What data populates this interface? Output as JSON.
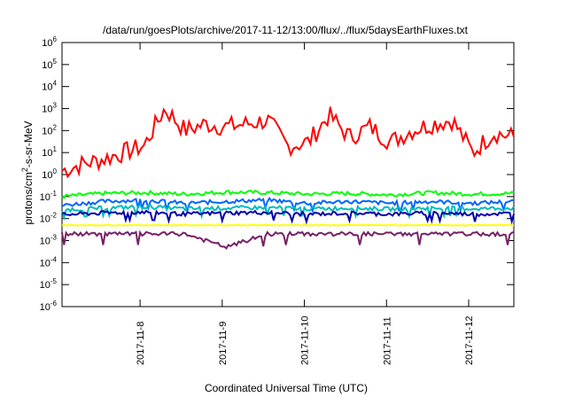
{
  "chart_data": {
    "type": "line",
    "title": "/data/run/goesPlots/archive/2017-11-12/13:00/flux/../flux/5daysEarthFluxes.txt",
    "xlabel": "Coordinated Universal Time (UTC)",
    "ylabel": {
      "base": "protons/cm",
      "sup": "2",
      "rest": "-s-sr-MeV"
    },
    "yscale": "log",
    "ylim": [
      1e-06,
      1000000.0
    ],
    "xlim": [
      "2017-11-07T01:00",
      "2017-11-12T13:00"
    ],
    "x_ticks": [
      "2017-11-8",
      "2017-11-9",
      "2017-11-10",
      "2017-11-11",
      "2017-11-12"
    ],
    "y_ticks": [
      {
        "value": 1e-06,
        "base": "10",
        "exp": "-6"
      },
      {
        "value": 1e-05,
        "base": "10",
        "exp": "-5"
      },
      {
        "value": 0.0001,
        "base": "10",
        "exp": "-4"
      },
      {
        "value": 0.001,
        "base": "10",
        "exp": "-3"
      },
      {
        "value": 0.01,
        "base": "10",
        "exp": "-2"
      },
      {
        "value": 0.1,
        "base": "10",
        "exp": "-1"
      },
      {
        "value": 1,
        "base": "10",
        "exp": "0"
      },
      {
        "value": 10,
        "base": "10",
        "exp": "1"
      },
      {
        "value": 100,
        "base": "10",
        "exp": "2"
      },
      {
        "value": 1000,
        "base": "10",
        "exp": "3"
      },
      {
        "value": 10000,
        "base": "10",
        "exp": "4"
      },
      {
        "value": 100000,
        "base": "10",
        "exp": "5"
      },
      {
        "value": 1000000,
        "base": "10",
        "exp": "6"
      }
    ],
    "grid": false,
    "legend": "none",
    "series": [
      {
        "color": "#ff0000",
        "x": [
          0.0,
          0.25,
          0.5,
          0.75,
          1.0,
          1.25,
          1.5,
          1.75,
          2.0,
          2.25,
          2.5,
          2.75,
          3.0,
          3.25,
          3.5,
          3.75,
          4.0,
          4.25,
          4.5,
          4.75,
          5.0,
          5.25,
          5.5
        ],
        "values": [
          1.5,
          3,
          5,
          10,
          20,
          1000,
          100,
          200,
          150,
          200,
          300,
          20,
          30,
          500,
          50,
          150,
          30,
          100,
          200,
          300,
          10,
          80,
          50
        ]
      },
      {
        "color": "#00ff00",
        "x": [
          0.0,
          0.5,
          1.0,
          1.5,
          2.0,
          2.5,
          3.0,
          3.5,
          4.0,
          4.5,
          5.0,
          5.5
        ],
        "values": [
          0.1,
          0.14,
          0.15,
          0.13,
          0.16,
          0.15,
          0.13,
          0.14,
          0.12,
          0.15,
          0.13,
          0.14
        ]
      },
      {
        "color": "#0066ff",
        "x": [
          0.0,
          0.5,
          1.0,
          1.5,
          2.0,
          2.5,
          3.0,
          3.5,
          4.0,
          4.5,
          5.0,
          5.5
        ],
        "values": [
          0.04,
          0.06,
          0.07,
          0.05,
          0.06,
          0.07,
          0.05,
          0.06,
          0.05,
          0.06,
          0.05,
          0.06
        ]
      },
      {
        "color": "#00bbbb",
        "x": [
          0.0,
          0.5,
          1.0,
          1.5,
          2.0,
          2.5,
          3.0,
          3.5,
          4.0,
          4.5,
          5.0,
          5.5
        ],
        "values": [
          0.025,
          0.03,
          0.035,
          0.028,
          0.03,
          0.032,
          0.028,
          0.03,
          0.027,
          0.03,
          0.028,
          0.03
        ]
      },
      {
        "color": "#0000aa",
        "x": [
          0.0,
          0.5,
          1.0,
          1.5,
          2.0,
          2.5,
          3.0,
          3.5,
          4.0,
          4.5,
          5.0,
          5.5
        ],
        "values": [
          0.015,
          0.018,
          0.02,
          0.016,
          0.018,
          0.019,
          0.016,
          0.018,
          0.016,
          0.018,
          0.016,
          0.017
        ]
      },
      {
        "color": "#ffff00",
        "x": [
          0.0,
          0.5,
          1.0,
          1.5,
          2.0,
          2.5,
          3.0,
          3.5,
          4.0,
          4.5,
          5.0,
          5.5
        ],
        "values": [
          0.005,
          0.005,
          0.005,
          0.005,
          0.005,
          0.005,
          0.005,
          0.005,
          0.005,
          0.005,
          0.005,
          0.005
        ]
      },
      {
        "color": "#772266",
        "x": [
          0.0,
          0.5,
          1.0,
          1.5,
          2.0,
          2.5,
          3.0,
          3.5,
          4.0,
          4.5,
          5.0,
          5.5
        ],
        "values": [
          0.002,
          0.002,
          0.002,
          0.002,
          0.0005,
          0.002,
          0.002,
          0.002,
          0.002,
          0.002,
          0.002,
          0.002
        ]
      }
    ]
  }
}
